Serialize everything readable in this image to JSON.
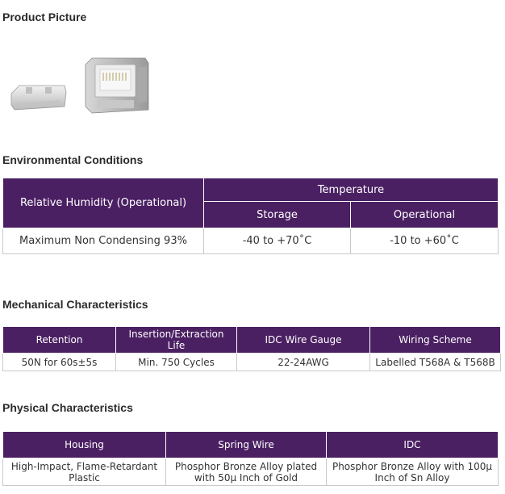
{
  "sections": {
    "product_picture": "Product Picture",
    "environmental": "Environmental Conditions",
    "mechanical": "Mechanical Characteristics",
    "physical": "Physical Characteristics"
  },
  "environmental_table": {
    "humidity_header": "Relative Humidity (Operational)",
    "temperature_header": "Temperature",
    "storage_header": "Storage",
    "operational_header": "Operational",
    "humidity_value": "Maximum Non Condensing 93%",
    "storage_value": "-40 to +70˚C",
    "operational_value": "-10 to +60˚C"
  },
  "mechanical_table": {
    "headers": [
      "Retention",
      "Insertion/Extraction Life",
      "IDC Wire Gauge",
      "Wiring Scheme"
    ],
    "values": [
      "50N for 60s±5s",
      "Min. 750 Cycles",
      "22-24AWG",
      "Labelled T568A & T568B"
    ]
  },
  "physical_table": {
    "headers": [
      "Housing",
      "Spring Wire",
      "IDC"
    ],
    "values": [
      "High-Impact, Flame-Retardant Plastic",
      "Phosphor Bronze Alloy plated with 50μ Inch of Gold",
      "Phosphor Bronze Alloy with 100μ Inch of Sn Alloy"
    ]
  },
  "product_image": {
    "icon": "keystone-jack-image"
  }
}
